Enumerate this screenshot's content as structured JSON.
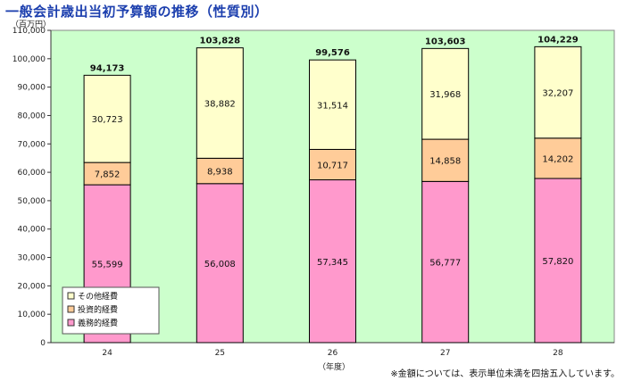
{
  "title": "一般会計歳出当初予算額の推移（性質別）",
  "yunit": "（百万円）",
  "xunit": "（年度）",
  "note": "※金額については、表示単位未満を四捨五入しています。",
  "colors": {
    "plot_bg": "#ccffcc",
    "gimu": "#ff99cc",
    "toushi": "#ffcc99",
    "sonota": "#ffffcc",
    "border": "#000000",
    "title": "#1c3fae"
  },
  "chart_data": {
    "type": "bar",
    "stacked": true,
    "categories": [
      "24",
      "25",
      "26",
      "27",
      "28"
    ],
    "series": [
      {
        "name": "義務的経費",
        "values": [
          55599,
          56008,
          57345,
          56777,
          57820
        ]
      },
      {
        "name": "投資的経費",
        "values": [
          7852,
          8938,
          10717,
          14858,
          14202
        ]
      },
      {
        "name": "その他経費",
        "values": [
          30723,
          38882,
          31514,
          31968,
          32207
        ]
      }
    ],
    "totals": [
      94173,
      103828,
      99576,
      103603,
      104229
    ],
    "value_labels": [
      [
        "55,599",
        "56,008",
        "57,345",
        "56,777",
        "57,820"
      ],
      [
        "7,852",
        "8,938",
        "10,717",
        "14,858",
        "14,202"
      ],
      [
        "30,723",
        "38,882",
        "31,514",
        "31,968",
        "32,207"
      ]
    ],
    "total_labels": [
      "94,173",
      "103,828",
      "99,576",
      "103,603",
      "104,229"
    ],
    "yticks": [
      "0",
      "10,000",
      "20,000",
      "30,000",
      "40,000",
      "50,000",
      "60,000",
      "70,000",
      "80,000",
      "90,000",
      "100,000",
      "110,000"
    ],
    "ylim": [
      0,
      110000
    ],
    "legend": [
      "その他経費",
      "投資的経費",
      "義務的経費"
    ],
    "legend_position": "bottom-left"
  }
}
